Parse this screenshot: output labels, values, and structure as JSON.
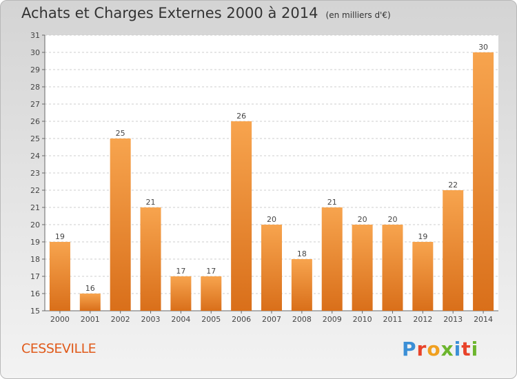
{
  "title": "Achats et Charges Externes 2000 à 2014",
  "unit_note": "(en milliers d'€)",
  "commune": "CESSEVILLE",
  "logo": {
    "text": "Proxiti",
    "colors": [
      "#3b8fd6",
      "#f0a020",
      "#6cb52d",
      "#e8432a"
    ]
  },
  "chart_data": {
    "type": "bar",
    "categories": [
      "2000",
      "2001",
      "2002",
      "2003",
      "2004",
      "2005",
      "2006",
      "2007",
      "2008",
      "2009",
      "2010",
      "2011",
      "2012",
      "2013",
      "2014"
    ],
    "values": [
      19,
      16,
      25,
      21,
      17,
      17,
      26,
      20,
      18,
      21,
      20,
      20,
      19,
      22,
      30
    ],
    "ylim": [
      15,
      31
    ],
    "yticks": [
      15,
      16,
      17,
      18,
      19,
      20,
      21,
      22,
      23,
      24,
      25,
      26,
      27,
      28,
      29,
      30,
      31
    ],
    "grid": "horizontal-dashed",
    "bar_color_light": "#f7a44e",
    "bar_color_dark": "#d96f1a"
  }
}
